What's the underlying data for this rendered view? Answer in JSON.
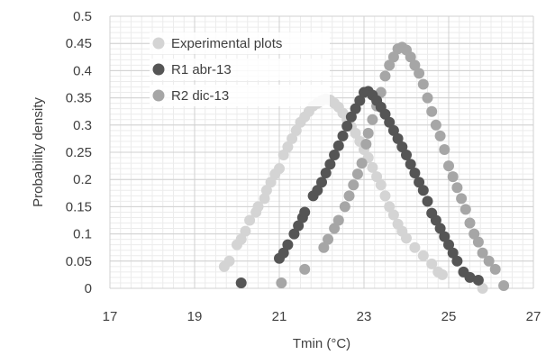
{
  "chart_data": {
    "type": "scatter",
    "xlabel": "Tmin (°C)",
    "ylabel": "Probability density",
    "xlim": [
      17,
      27
    ],
    "ylim": [
      0,
      0.5
    ],
    "x_ticks": [
      17,
      19,
      21,
      23,
      25,
      27
    ],
    "y_ticks": [
      0,
      0.05,
      0.1,
      0.15,
      0.2,
      0.25,
      0.3,
      0.35,
      0.4,
      0.45,
      0.5
    ],
    "y_tick_labels": [
      "0",
      "0.05",
      "0.1",
      "0.15",
      "0.2",
      "0.25",
      "0.3",
      "0.35",
      "0.4",
      "0.45",
      "0.5"
    ],
    "grid": "major and minor, light gray",
    "legend_placement": "top-left",
    "series": [
      {
        "name": "Experimental plots",
        "color": "#d4d4d4",
        "points": [
          [
            19.7,
            0.04
          ],
          [
            19.82,
            0.05
          ],
          [
            20.0,
            0.08
          ],
          [
            20.1,
            0.09
          ],
          [
            20.2,
            0.105
          ],
          [
            20.3,
            0.125
          ],
          [
            20.45,
            0.14
          ],
          [
            20.5,
            0.15
          ],
          [
            20.65,
            0.165
          ],
          [
            20.7,
            0.18
          ],
          [
            20.8,
            0.195
          ],
          [
            20.9,
            0.21
          ],
          [
            21.0,
            0.22
          ],
          [
            21.1,
            0.245
          ],
          [
            21.2,
            0.26
          ],
          [
            21.3,
            0.275
          ],
          [
            21.4,
            0.29
          ],
          [
            21.5,
            0.305
          ],
          [
            21.6,
            0.315
          ],
          [
            21.7,
            0.325
          ],
          [
            21.8,
            0.335
          ],
          [
            21.9,
            0.34
          ],
          [
            22.0,
            0.345
          ],
          [
            22.1,
            0.348
          ],
          [
            22.2,
            0.346
          ],
          [
            22.3,
            0.34
          ],
          [
            22.4,
            0.333
          ],
          [
            22.5,
            0.322
          ],
          [
            22.6,
            0.31
          ],
          [
            22.7,
            0.297
          ],
          [
            22.8,
            0.285
          ],
          [
            22.9,
            0.27
          ],
          [
            23.0,
            0.255
          ],
          [
            23.1,
            0.24
          ],
          [
            23.2,
            0.222
          ],
          [
            23.3,
            0.205
          ],
          [
            23.4,
            0.19
          ],
          [
            23.5,
            0.17
          ],
          [
            23.6,
            0.15
          ],
          [
            23.7,
            0.135
          ],
          [
            23.8,
            0.118
          ],
          [
            23.9,
            0.105
          ],
          [
            24.0,
            0.092
          ],
          [
            24.2,
            0.075
          ],
          [
            24.4,
            0.06
          ],
          [
            24.6,
            0.045
          ],
          [
            24.75,
            0.03
          ],
          [
            24.85,
            0.025
          ],
          [
            25.8,
            0.0
          ]
        ]
      },
      {
        "name": "R1 abr-13",
        "color": "#555555",
        "points": [
          [
            20.1,
            0.01
          ],
          [
            21.0,
            0.055
          ],
          [
            21.1,
            0.065
          ],
          [
            21.2,
            0.08
          ],
          [
            21.35,
            0.1
          ],
          [
            21.45,
            0.115
          ],
          [
            21.55,
            0.13
          ],
          [
            21.6,
            0.14
          ],
          [
            21.8,
            0.17
          ],
          [
            21.9,
            0.18
          ],
          [
            22.0,
            0.195
          ],
          [
            22.1,
            0.212
          ],
          [
            22.2,
            0.228
          ],
          [
            22.3,
            0.245
          ],
          [
            22.4,
            0.262
          ],
          [
            22.5,
            0.28
          ],
          [
            22.6,
            0.298
          ],
          [
            22.7,
            0.315
          ],
          [
            22.8,
            0.33
          ],
          [
            22.9,
            0.345
          ],
          [
            23.0,
            0.36
          ],
          [
            23.1,
            0.362
          ],
          [
            23.2,
            0.355
          ],
          [
            23.3,
            0.345
          ],
          [
            23.4,
            0.333
          ],
          [
            23.5,
            0.32
          ],
          [
            23.6,
            0.305
          ],
          [
            23.7,
            0.29
          ],
          [
            23.8,
            0.275
          ],
          [
            23.9,
            0.26
          ],
          [
            24.0,
            0.245
          ],
          [
            24.1,
            0.228
          ],
          [
            24.2,
            0.212
          ],
          [
            24.3,
            0.195
          ],
          [
            24.4,
            0.18
          ],
          [
            24.5,
            0.16
          ],
          [
            24.6,
            0.138
          ],
          [
            24.7,
            0.125
          ],
          [
            24.8,
            0.11
          ],
          [
            24.9,
            0.095
          ],
          [
            25.0,
            0.08
          ],
          [
            25.1,
            0.065
          ],
          [
            25.2,
            0.05
          ],
          [
            25.35,
            0.03
          ],
          [
            25.5,
            0.02
          ],
          [
            25.7,
            0.015
          ]
        ]
      },
      {
        "name": "R2 dic-13",
        "color": "#a6a6a6",
        "points": [
          [
            21.05,
            0.01
          ],
          [
            21.6,
            0.035
          ],
          [
            22.05,
            0.075
          ],
          [
            22.15,
            0.09
          ],
          [
            22.3,
            0.11
          ],
          [
            22.4,
            0.125
          ],
          [
            22.55,
            0.15
          ],
          [
            22.65,
            0.17
          ],
          [
            22.75,
            0.19
          ],
          [
            22.85,
            0.21
          ],
          [
            22.95,
            0.23
          ],
          [
            23.05,
            0.265
          ],
          [
            23.1,
            0.285
          ],
          [
            23.2,
            0.31
          ],
          [
            23.3,
            0.335
          ],
          [
            23.4,
            0.36
          ],
          [
            23.5,
            0.39
          ],
          [
            23.6,
            0.41
          ],
          [
            23.7,
            0.425
          ],
          [
            23.8,
            0.44
          ],
          [
            23.9,
            0.443
          ],
          [
            24.0,
            0.438
          ],
          [
            24.1,
            0.425
          ],
          [
            24.2,
            0.41
          ],
          [
            24.3,
            0.395
          ],
          [
            24.4,
            0.375
          ],
          [
            24.5,
            0.35
          ],
          [
            24.6,
            0.325
          ],
          [
            24.7,
            0.3
          ],
          [
            24.8,
            0.28
          ],
          [
            24.9,
            0.255
          ],
          [
            25.0,
            0.225
          ],
          [
            25.1,
            0.205
          ],
          [
            25.2,
            0.185
          ],
          [
            25.3,
            0.165
          ],
          [
            25.4,
            0.145
          ],
          [
            25.5,
            0.12
          ],
          [
            25.6,
            0.1
          ],
          [
            25.7,
            0.085
          ],
          [
            25.8,
            0.065
          ],
          [
            25.95,
            0.05
          ],
          [
            26.1,
            0.035
          ],
          [
            26.3,
            0.005
          ]
        ]
      }
    ]
  }
}
